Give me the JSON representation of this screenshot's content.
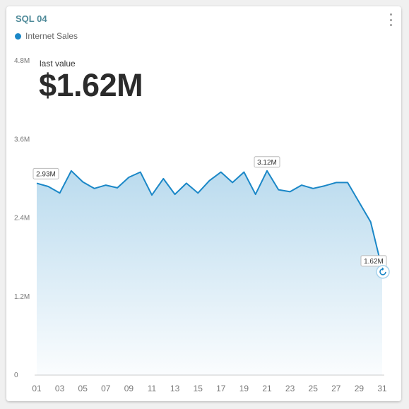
{
  "widget": {
    "title": "SQL 04",
    "last_value_label": "last value",
    "last_value": "$1.62M"
  },
  "colors": {
    "series": "#1a87c7",
    "title": "#4f8a99"
  },
  "icons": {
    "menu": "vertical-dots-icon",
    "refresh": "refresh-icon"
  },
  "chart_data": {
    "type": "area",
    "x": [
      1,
      2,
      3,
      4,
      5,
      6,
      7,
      8,
      9,
      10,
      11,
      12,
      13,
      14,
      15,
      16,
      17,
      18,
      19,
      20,
      21,
      22,
      23,
      24,
      25,
      26,
      27,
      28,
      29,
      30,
      31
    ],
    "x_tick_labels": [
      "01",
      "03",
      "05",
      "07",
      "09",
      "11",
      "13",
      "15",
      "17",
      "19",
      "21",
      "23",
      "25",
      "27",
      "29",
      "31"
    ],
    "y_tick_labels": [
      "0",
      "1.2M",
      "2.4M",
      "3.6M",
      "4.8M"
    ],
    "ylim": [
      0,
      4800000
    ],
    "grid": false,
    "legend_position": "top-left",
    "series": [
      {
        "name": "Internet Sales",
        "values": [
          2930000,
          2880000,
          2780000,
          3120000,
          2950000,
          2850000,
          2900000,
          2860000,
          3020000,
          3100000,
          2750000,
          3000000,
          2760000,
          2930000,
          2780000,
          2970000,
          3100000,
          2940000,
          3100000,
          2760000,
          3120000,
          2830000,
          2800000,
          2900000,
          2850000,
          2890000,
          2940000,
          2940000,
          2640000,
          2340000,
          1620000
        ]
      }
    ],
    "annotations": [
      {
        "x": 1,
        "label": "2.93M"
      },
      {
        "x": 21,
        "label": "3.12M"
      },
      {
        "x": 31,
        "label": "1.62M"
      }
    ]
  }
}
